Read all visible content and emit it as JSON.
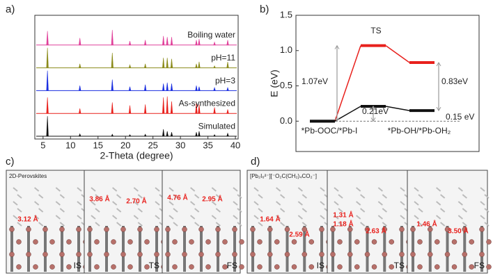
{
  "chart_data": [
    {
      "type": "spectrum",
      "panel_label": "a)",
      "xlabel": "2-Theta (degree)",
      "xlim": [
        3.5,
        40.5
      ],
      "xticks": [
        5,
        10,
        15,
        20,
        25,
        30,
        35,
        40
      ],
      "series": [
        {
          "name": "Boiling water",
          "color": "#e0409a",
          "x": [
            5.8,
            11.7,
            17.6,
            20.8,
            23.6,
            26.9,
            27.6,
            28.4,
            32.9,
            33.4,
            36.2,
            38.6
          ],
          "values": [
            70,
            35,
            75,
            20,
            25,
            45,
            40,
            40,
            25,
            30,
            15,
            25
          ]
        },
        {
          "name": "pH=11",
          "color": "#8b8b1a",
          "x": [
            5.8,
            11.7,
            17.6,
            20.8,
            23.6,
            26.9,
            27.6,
            28.4,
            32.9,
            33.4,
            36.2,
            38.6
          ],
          "values": [
            100,
            20,
            75,
            15,
            20,
            50,
            50,
            45,
            20,
            30,
            10,
            30
          ]
        },
        {
          "name": "pH=3",
          "color": "#1a2ee0",
          "x": [
            5.8,
            11.7,
            17.6,
            20.8,
            23.6,
            26.9,
            27.6,
            28.4,
            32.9,
            33.4,
            36.2,
            38.6
          ],
          "values": [
            100,
            25,
            55,
            20,
            30,
            35,
            40,
            35,
            25,
            20,
            15,
            15
          ]
        },
        {
          "name": "As-synthesized",
          "color": "#e8201c",
          "x": [
            5.8,
            11.7,
            17.6,
            20.8,
            23.6,
            26.9,
            27.6,
            28.4,
            32.9,
            33.4,
            36.2,
            38.6
          ],
          "values": [
            80,
            25,
            55,
            40,
            45,
            80,
            85,
            60,
            55,
            45,
            30,
            20
          ]
        },
        {
          "name": "Simulated",
          "color": "#111111",
          "x": [
            5.8,
            11.7,
            17.6,
            20.8,
            23.6,
            26.9,
            27.6,
            28.4,
            32.9,
            33.4,
            36.2,
            38.6
          ],
          "values": [
            100,
            12,
            10,
            8,
            10,
            35,
            25,
            20,
            20,
            25,
            8,
            15
          ]
        }
      ]
    },
    {
      "type": "energy",
      "panel_label": "b)",
      "ylabel": "E (eV)",
      "ylim": [
        -0.43,
        1.5
      ],
      "yticks": [
        {
          "value": 0,
          "label": "0.0"
        },
        0.5,
        {
          "value": 1,
          "label": "1.0"
        },
        1.5
      ],
      "categories": [
        "*Pb-OOC/*Pb-I",
        null,
        "*Pb-OH/*Pb-OH₂"
      ],
      "series": [
        {
          "color": "#e8201c",
          "values": [
            0,
            1.07,
            0.83
          ]
        },
        {
          "color": "#111111",
          "values": [
            0,
            0.21,
            0.15
          ]
        }
      ],
      "annotations": [
        "TS",
        "1.07eV",
        "0.83eV",
        "0.21eV",
        "0.15 eV"
      ]
    }
  ],
  "figures": [
    {
      "panel_label": "c)",
      "caption": "2D-Perovskites",
      "frames": [
        {
          "label": "IS",
          "distances": [
            "3.12 Å"
          ]
        },
        {
          "label": "TS",
          "distances": [
            "3.86 Å",
            "2.70 Å"
          ]
        },
        {
          "label": "FS",
          "distances": [
            "4.76 Å",
            "2.95 Å"
          ]
        }
      ]
    },
    {
      "panel_label": "d)",
      "caption": "[Pb₂I₆²⁻][⁻O₂C(CH₂)₄CO₂⁻]",
      "frames": [
        {
          "label": "IS",
          "distances": [
            "1.64 Å",
            "2.59 Å"
          ]
        },
        {
          "label": "TS",
          "distances": [
            "1.31 Å",
            "1.18 Å",
            "2.63 Å"
          ]
        },
        {
          "label": "FS",
          "distances": [
            "1.46 Å",
            "3.50 Å"
          ]
        }
      ]
    }
  ]
}
